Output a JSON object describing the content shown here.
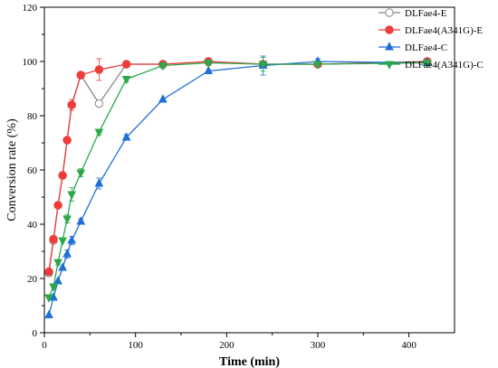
{
  "chart_data": {
    "type": "line",
    "title": "",
    "xlabel": "Time (min)",
    "ylabel": "Conversion rate (%)",
    "xlim": [
      0,
      450
    ],
    "ylim": [
      0,
      120
    ],
    "xticks": [
      0,
      100,
      200,
      300,
      400
    ],
    "yticks": [
      0,
      20,
      40,
      60,
      80,
      100,
      120
    ],
    "grid": false,
    "legend_position": "top-right",
    "series": [
      {
        "name": "DLFae4-E",
        "color": "#888888",
        "marker": "circle-open",
        "x": [
          5,
          10,
          15,
          20,
          25,
          30,
          40,
          60,
          90,
          130,
          180,
          240,
          300,
          420
        ],
        "y": [
          22,
          34,
          47,
          58,
          71,
          84,
          95,
          84.5,
          99,
          99,
          100,
          99,
          99,
          100
        ],
        "err": [
          0,
          0,
          0,
          0,
          0,
          0,
          0,
          0,
          0,
          0,
          0,
          0,
          0,
          0
        ]
      },
      {
        "name": "DLFae4(A341G)-E",
        "color": "#f23b3b",
        "marker": "circle",
        "x": [
          5,
          10,
          15,
          20,
          25,
          30,
          40,
          60,
          90,
          130,
          180,
          240,
          300,
          420
        ],
        "y": [
          22.5,
          34.5,
          47,
          58,
          71,
          84,
          95,
          97,
          99,
          99,
          100,
          99,
          99,
          100
        ],
        "err": [
          0,
          0,
          0,
          0,
          0,
          2,
          0,
          4,
          1,
          0,
          0,
          0,
          0,
          0
        ]
      },
      {
        "name": "DLFae4-C",
        "color": "#1f6fd6",
        "marker": "triangle-up",
        "x": [
          5,
          10,
          15,
          20,
          25,
          30,
          40,
          60,
          90,
          130,
          180,
          240,
          300,
          420
        ],
        "y": [
          6.5,
          13,
          19,
          24,
          29,
          34,
          41,
          55,
          72,
          86,
          96.5,
          98.5,
          100,
          99.5
        ],
        "err": [
          0,
          0,
          0,
          0,
          1.5,
          1.5,
          1,
          2,
          1,
          0,
          0,
          3.5,
          1,
          1
        ]
      },
      {
        "name": "DLFae4(A341G)-C",
        "color": "#2aa84a",
        "marker": "triangle-down",
        "x": [
          5,
          10,
          15,
          20,
          25,
          30,
          40,
          60,
          90,
          130,
          180,
          240,
          300,
          420
        ],
        "y": [
          13,
          17,
          26,
          34,
          42,
          51,
          59,
          74,
          93.5,
          98.5,
          99.5,
          99,
          99,
          99.5
        ],
        "err": [
          0,
          1,
          1,
          0,
          1.5,
          2.5,
          1.5,
          1,
          1,
          1,
          1,
          2.5,
          1,
          1
        ]
      }
    ]
  }
}
